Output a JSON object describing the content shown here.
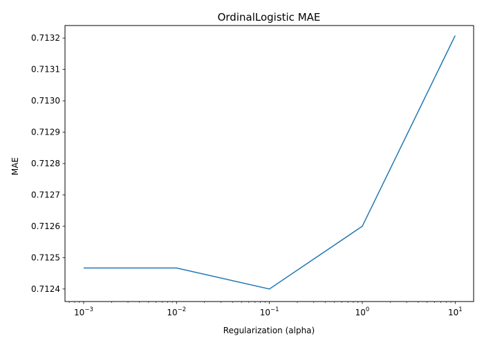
{
  "chart_data": {
    "type": "line",
    "title": "OrdinalLogistic MAE",
    "xlabel": "Regularization (alpha)",
    "ylabel": "MAE",
    "x_scale": "log",
    "x_base": "10",
    "x": [
      0.001,
      0.01,
      0.1,
      1,
      10
    ],
    "x_tick_exponents": [
      "−3",
      "−2",
      "−1",
      "0",
      "1"
    ],
    "xlim": [
      0.00063,
      15.8
    ],
    "series": [
      {
        "values": [
          0.712467,
          0.712467,
          0.7124,
          0.7126,
          0.713208
        ],
        "color": "#1f77b4"
      }
    ],
    "y_ticks": [
      0.7124,
      0.7125,
      0.7126,
      0.7127,
      0.7128,
      0.7129,
      0.713,
      0.7131,
      0.7132
    ],
    "y_tick_labels": [
      "0.7124",
      "0.7125",
      "0.7126",
      "0.7127",
      "0.7128",
      "0.7129",
      "0.7130",
      "0.7131",
      "0.7132"
    ],
    "ylim": [
      0.71236,
      0.71324
    ],
    "grid": false,
    "legend": "none"
  }
}
